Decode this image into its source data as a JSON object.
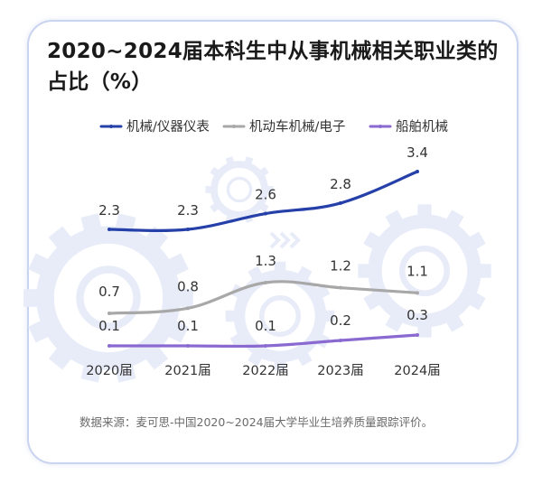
{
  "title": "2020~2024届本科生中从事机械相关职业类的占比（%）",
  "source_note": "数据来源：麦可思-中国2020~2024届大学毕业生培养质量跟踪评价。",
  "colors": {
    "series_1": "#2540a8",
    "series_2": "#a8a8a8",
    "series_3": "#8a6ad0",
    "card_border": "#c9d4ef",
    "decor": "#e8ecf8"
  },
  "chart_data": {
    "type": "line",
    "title": "2020~2024届本科生中从事机械相关职业类的占比（%）",
    "x": [
      "2020届",
      "2021届",
      "2022届",
      "2023届",
      "2024届"
    ],
    "series": [
      {
        "name": "机械/仪器仪表",
        "values": [
          2.3,
          2.3,
          2.6,
          2.8,
          3.4
        ],
        "labels": [
          "2.3",
          "2.3",
          "2.6",
          "2.8",
          "3.4"
        ]
      },
      {
        "name": "机动车机械/电子",
        "values": [
          0.7,
          0.8,
          1.3,
          1.2,
          1.1
        ],
        "labels": [
          "0.7",
          "0.8",
          "1.3",
          "1.2",
          "1.1"
        ]
      },
      {
        "name": "船舶机械",
        "values": [
          0.1,
          0.1,
          0.1,
          0.2,
          0.3
        ],
        "labels": [
          "0.1",
          "0.1",
          "0.1",
          "0.2",
          "0.3"
        ]
      }
    ],
    "legend_position": "top",
    "grid": false,
    "y_axis_visible": false,
    "smooth": true
  }
}
